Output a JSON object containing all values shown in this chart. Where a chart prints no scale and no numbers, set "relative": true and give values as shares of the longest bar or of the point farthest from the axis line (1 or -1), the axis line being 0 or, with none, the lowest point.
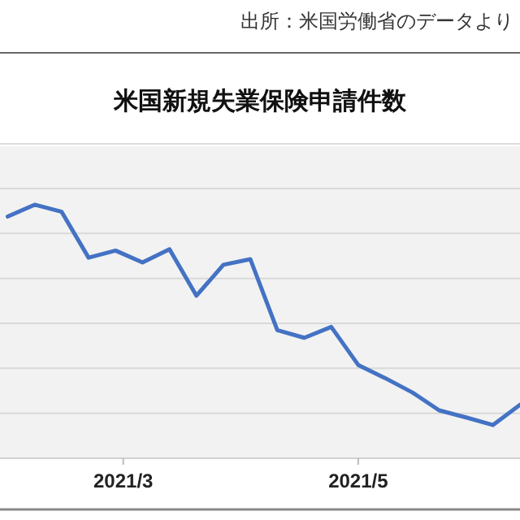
{
  "chart_data": {
    "type": "line",
    "title": "米国新規失業保険申請件数",
    "annotations": [
      "出所：米国労働省のデータより"
    ],
    "relative": true,
    "x": [
      "2021-01-30",
      "2021-02-06",
      "2021-02-13",
      "2021-02-20",
      "2021-02-27",
      "2021-03-06",
      "2021-03-13",
      "2021-03-20",
      "2021-03-27",
      "2021-04-03",
      "2021-04-10",
      "2021-04-17",
      "2021-04-24",
      "2021-05-01",
      "2021-05-08",
      "2021-05-15",
      "2021-05-22",
      "2021-05-29",
      "2021-06-05",
      "2021-06-12"
    ],
    "xlim": [
      "2021-01-28",
      "2021-06-12"
    ],
    "xticks": [
      {
        "value": "2021-03-01",
        "label": "2021/3"
      },
      {
        "value": "2021-05-01",
        "label": "2021/5"
      }
    ],
    "series": [
      {
        "color": "#4472c4",
        "values": [
          0.953,
          1,
          0.972,
          0.791,
          0.819,
          0.772,
          0.824,
          0.641,
          0.763,
          0.785,
          0.505,
          0.475,
          0.518,
          0.368,
          0.316,
          0.26,
          0.189,
          0.161,
          0.131,
          0.211
        ]
      }
    ],
    "grid": "y",
    "marker": "none",
    "line_style": "solid"
  }
}
